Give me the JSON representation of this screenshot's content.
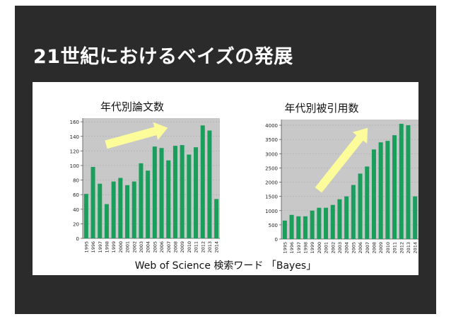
{
  "slide": {
    "title": "21世紀におけるベイズの発展"
  },
  "caption": "Web of Science 検索ワード 「Bayes」",
  "colors": {
    "bar": "#1a9e5c",
    "plot_bg": "#c8c8c8",
    "arrow": "#ffff99",
    "slide_bg": "#2b2b2b"
  },
  "chart_data": [
    {
      "type": "bar",
      "title": "年代別論文数",
      "categories": [
        "1995",
        "1996",
        "1997",
        "1998",
        "1999",
        "2000",
        "2001",
        "2002",
        "2003",
        "2004",
        "2005",
        "2006",
        "2007",
        "2008",
        "2009",
        "2010",
        "2011",
        "2012",
        "2013",
        "2014"
      ],
      "values": [
        61,
        98,
        75,
        47,
        78,
        83,
        73,
        78,
        103,
        93,
        126,
        124,
        107,
        127,
        128,
        115,
        125,
        155,
        148,
        54
      ],
      "yticks": [
        0,
        20,
        40,
        60,
        80,
        100,
        120,
        140,
        160
      ],
      "ylim": [
        0,
        165
      ],
      "annotation": "upward-arrow"
    },
    {
      "type": "bar",
      "title": "年代別被引用数",
      "categories": [
        "1995",
        "1996",
        "1997",
        "1998",
        "1999",
        "2000",
        "2001",
        "2002",
        "2003",
        "2004",
        "2005",
        "2006",
        "2007",
        "2008",
        "2009",
        "2010",
        "2011",
        "2012",
        "2013",
        "2014"
      ],
      "values": [
        650,
        850,
        800,
        800,
        1000,
        1100,
        1100,
        1200,
        1400,
        1500,
        1900,
        2300,
        2550,
        3150,
        3400,
        3450,
        3650,
        4050,
        4000,
        1500
      ],
      "yticks": [
        0,
        500,
        1000,
        1500,
        2000,
        2500,
        3000,
        3500,
        4000
      ],
      "ylim": [
        0,
        4200
      ],
      "annotation": "upward-arrow"
    }
  ]
}
